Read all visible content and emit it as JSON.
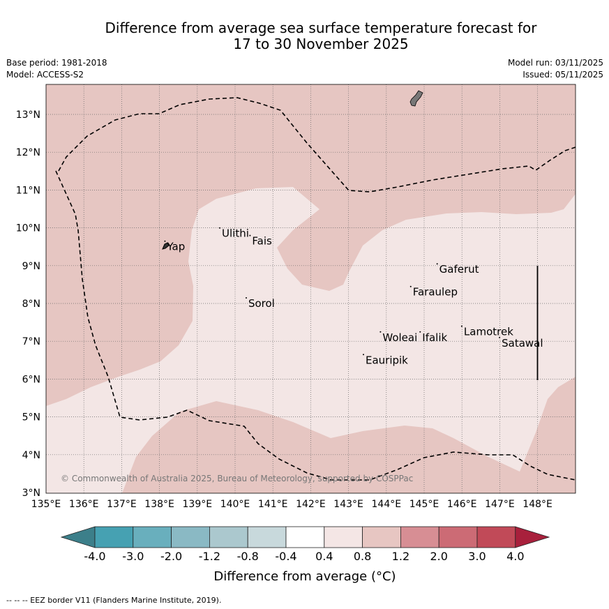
{
  "title": {
    "line1": "Difference from average sea surface temperature forecast for",
    "line2": "17 to 30 November 2025"
  },
  "meta": {
    "base_period": "Base period: 1981-2018",
    "model": "Model: ACCESS-S2",
    "model_run": "Model run: 03/11/2025",
    "issued": "Issued: 05/11/2025"
  },
  "map": {
    "lon_range": [
      135,
      149
    ],
    "lat_range": [
      3,
      13.8
    ],
    "lon_ticks": [
      "135°E",
      "136°E",
      "137°E",
      "138°E",
      "139°E",
      "140°E",
      "141°E",
      "142°E",
      "143°E",
      "144°E",
      "145°E",
      "146°E",
      "147°E",
      "148°E"
    ],
    "lat_ticks": [
      "3°N",
      "4°N",
      "5°N",
      "6°N",
      "7°N",
      "8°N",
      "9°N",
      "10°N",
      "11°N",
      "12°N",
      "13°N"
    ],
    "places": [
      {
        "name": "Yap",
        "lon": 138.2,
        "lat": 9.5
      },
      {
        "name": "Ulithi",
        "lon": 139.65,
        "lat": 9.85
      },
      {
        "name": "Fais",
        "lon": 140.45,
        "lat": 9.65
      },
      {
        "name": "Sorol",
        "lon": 140.35,
        "lat": 8.0
      },
      {
        "name": "Gaferut",
        "lon": 145.4,
        "lat": 8.9
      },
      {
        "name": "Faraulep",
        "lon": 144.7,
        "lat": 8.3
      },
      {
        "name": "Woleai",
        "lon": 143.9,
        "lat": 7.1
      },
      {
        "name": "Ifalik",
        "lon": 144.95,
        "lat": 7.1
      },
      {
        "name": "Lamotrek",
        "lon": 146.05,
        "lat": 7.25
      },
      {
        "name": "Satawal",
        "lon": 147.05,
        "lat": 6.95
      },
      {
        "name": "Eauripik",
        "lon": 143.45,
        "lat": 6.5
      }
    ],
    "copyright": "© Commonwealth of Australia 2025, Bureau of Meteorology, supported by COSPPac",
    "colors": {
      "band_04_08": "#f3e6e5",
      "band_08_12": "#e6c6c2",
      "land": "#777777"
    }
  },
  "colorbar": {
    "ticks": [
      "-4.0",
      "-3.0",
      "-2.0",
      "-1.2",
      "-0.8",
      "-0.4",
      "0.4",
      "0.8",
      "1.2",
      "2.0",
      "3.0",
      "4.0"
    ],
    "colors": [
      "#46a1b2",
      "#69afbd",
      "#8ab9c4",
      "#abc8ce",
      "#c8d9dc",
      "#ffffff",
      "#f4e6e5",
      "#e7c6c2",
      "#d78e94",
      "#cc6b75",
      "#c14a58"
    ],
    "under_color": "#3c7f8a",
    "over_color": "#a8203c",
    "label": "Difference from average (°C)"
  },
  "footer": "-- -- -- EEZ border V11 (Flanders Marine Institute, 2019)."
}
